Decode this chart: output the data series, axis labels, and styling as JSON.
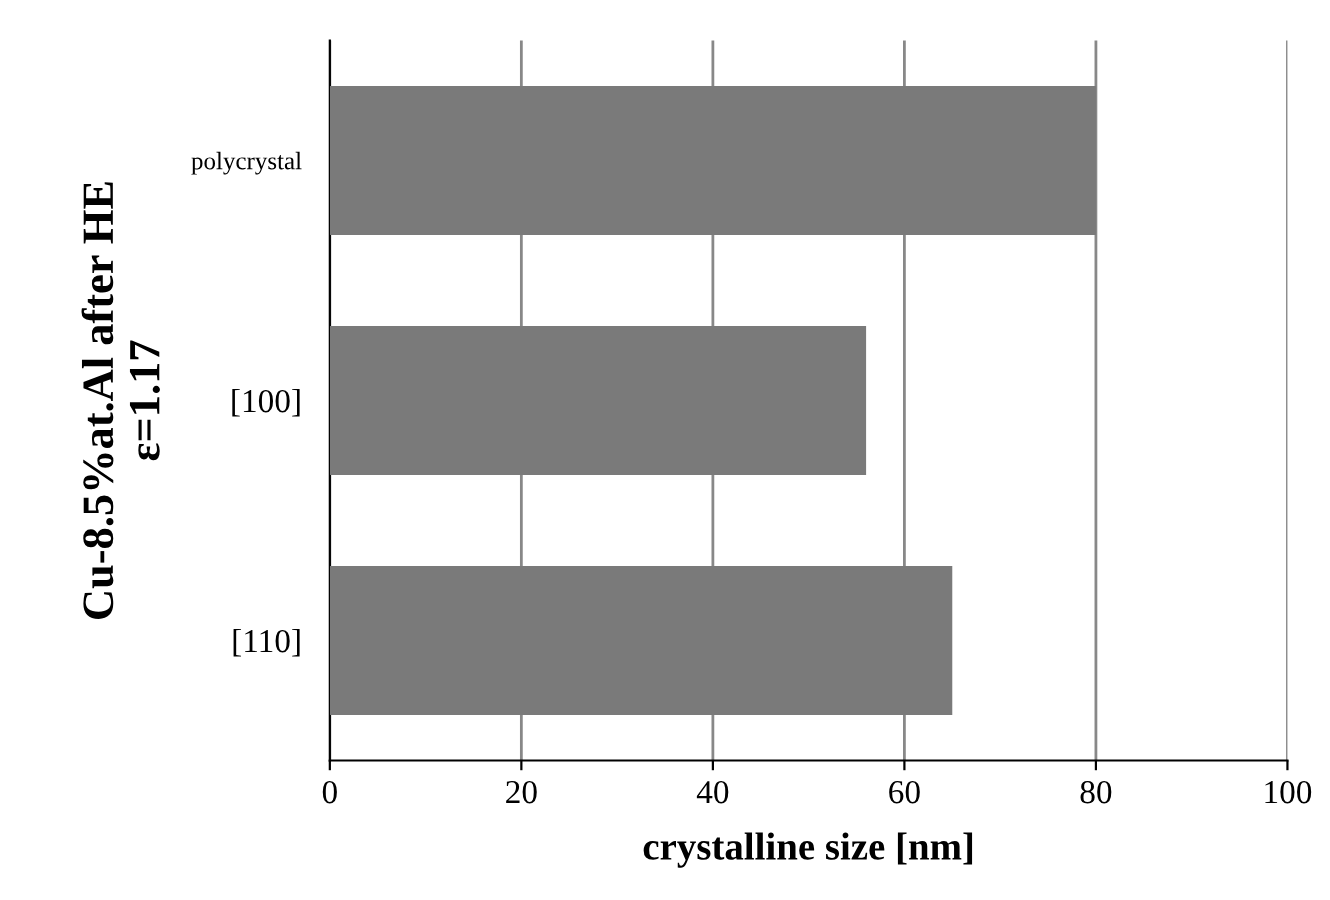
{
  "chart_data": {
    "type": "bar",
    "orientation": "horizontal",
    "categories": [
      "polycrystal",
      "[100]",
      "[110]"
    ],
    "values": [
      80,
      56,
      65
    ],
    "color": "#7a7a7a",
    "xlim": [
      0,
      100
    ],
    "xticks": [
      0,
      20,
      40,
      60,
      80,
      100
    ],
    "xlabel": "crystalline size [nm]",
    "ylabel": "Cu-8.5%at.Al after HE\nε=1.17",
    "grid": "x"
  }
}
